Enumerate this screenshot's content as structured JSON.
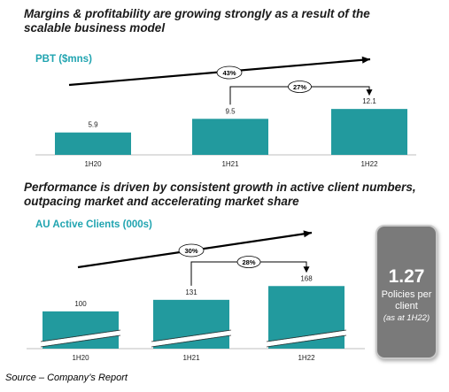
{
  "headings": {
    "top": "Margins & profitability are growing strongly as a result of the scalable business model",
    "bottom": "Performance is driven by consistent growth in active client numbers, outpacing market and accelerating market share"
  },
  "callout": {
    "value": "1.27",
    "text": "Policies per client",
    "note": "(as at 1H22)"
  },
  "source": "Source – Company’s Report",
  "colors": {
    "bar": "#229a9e",
    "accent_text": "#20a4b0",
    "callout_bg": "#7a7a7a"
  },
  "chart_data": [
    {
      "type": "bar",
      "title": "PBT ($mns)",
      "categories": [
        "1H20",
        "1H21",
        "1H22"
      ],
      "values": [
        5.9,
        9.5,
        12.1
      ],
      "value_labels": [
        "5.9",
        "9.5",
        "12.1"
      ],
      "ylim": [
        0,
        14
      ],
      "annotations": [
        {
          "label": "43%",
          "from": "1H20",
          "to": "1H22"
        },
        {
          "label": "27%",
          "from": "1H21",
          "to": "1H22"
        }
      ]
    },
    {
      "type": "bar",
      "title": "AU Active Clients (000s)",
      "categories": [
        "1H20",
        "1H21",
        "1H22"
      ],
      "values": [
        100,
        131,
        168
      ],
      "value_labels": [
        "100",
        "131",
        "168"
      ],
      "ylim": [
        0,
        190
      ],
      "axis_break": true,
      "annotations": [
        {
          "label": "30%",
          "from": "1H20",
          "to": "1H22"
        },
        {
          "label": "28%",
          "from": "1H21",
          "to": "1H22"
        }
      ]
    }
  ]
}
